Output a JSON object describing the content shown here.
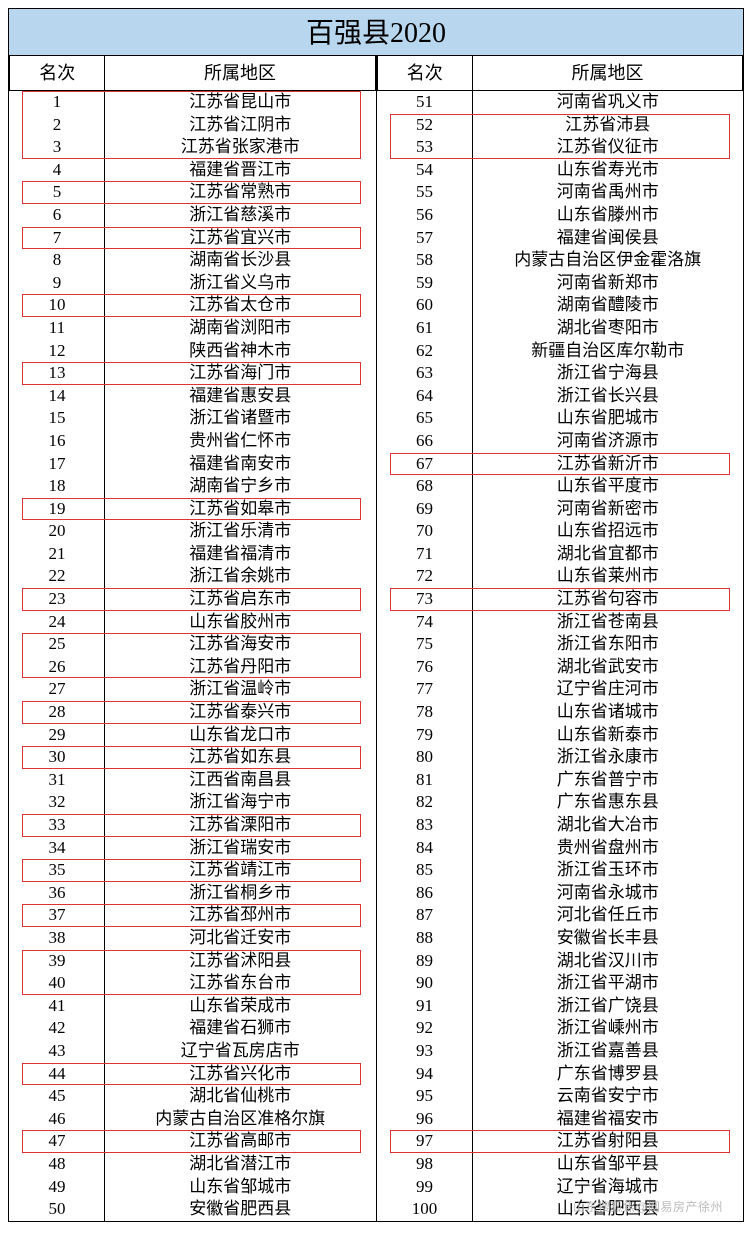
{
  "title": "百强县2020",
  "headers": {
    "rank": "名次",
    "region": "所属地区"
  },
  "watermark": "山东搜狐焦@网易房产徐州",
  "highlight_color": "#d33",
  "title_bg": "#b8d6ed",
  "left": [
    {
      "rank": 1,
      "region": "江苏省昆山市",
      "hl": true,
      "group": "a"
    },
    {
      "rank": 2,
      "region": "江苏省江阴市",
      "hl": true,
      "group": "a"
    },
    {
      "rank": 3,
      "region": "江苏省张家港市",
      "hl": true,
      "group": "a"
    },
    {
      "rank": 4,
      "region": "福建省晋江市"
    },
    {
      "rank": 5,
      "region": "江苏省常熟市",
      "hl": true,
      "group": "b"
    },
    {
      "rank": 6,
      "region": "浙江省慈溪市"
    },
    {
      "rank": 7,
      "region": "江苏省宜兴市",
      "hl": true,
      "group": "c"
    },
    {
      "rank": 8,
      "region": "湖南省长沙县"
    },
    {
      "rank": 9,
      "region": "浙江省义乌市"
    },
    {
      "rank": 10,
      "region": "江苏省太仓市",
      "hl": true,
      "group": "d"
    },
    {
      "rank": 11,
      "region": "湖南省浏阳市"
    },
    {
      "rank": 12,
      "region": "陕西省神木市"
    },
    {
      "rank": 13,
      "region": "江苏省海门市",
      "hl": true,
      "group": "e"
    },
    {
      "rank": 14,
      "region": "福建省惠安县"
    },
    {
      "rank": 15,
      "region": "浙江省诸暨市"
    },
    {
      "rank": 16,
      "region": "贵州省仁怀市"
    },
    {
      "rank": 17,
      "region": "福建省南安市"
    },
    {
      "rank": 18,
      "region": "湖南省宁乡市"
    },
    {
      "rank": 19,
      "region": "江苏省如皋市",
      "hl": true,
      "group": "f"
    },
    {
      "rank": 20,
      "region": "浙江省乐清市"
    },
    {
      "rank": 21,
      "region": "福建省福清市"
    },
    {
      "rank": 22,
      "region": "浙江省余姚市"
    },
    {
      "rank": 23,
      "region": "江苏省启东市",
      "hl": true,
      "group": "g"
    },
    {
      "rank": 24,
      "region": "山东省胶州市"
    },
    {
      "rank": 25,
      "region": "江苏省海安市",
      "hl": true,
      "group": "h"
    },
    {
      "rank": 26,
      "region": "江苏省丹阳市",
      "hl": true,
      "group": "h"
    },
    {
      "rank": 27,
      "region": "浙江省温岭市"
    },
    {
      "rank": 28,
      "region": "江苏省泰兴市",
      "hl": true,
      "group": "i"
    },
    {
      "rank": 29,
      "region": "山东省龙口市"
    },
    {
      "rank": 30,
      "region": "江苏省如东县",
      "hl": true,
      "group": "j"
    },
    {
      "rank": 31,
      "region": "江西省南昌县"
    },
    {
      "rank": 32,
      "region": "浙江省海宁市"
    },
    {
      "rank": 33,
      "region": "江苏省溧阳市",
      "hl": true,
      "group": "k"
    },
    {
      "rank": 34,
      "region": "浙江省瑞安市"
    },
    {
      "rank": 35,
      "region": "江苏省靖江市",
      "hl": true,
      "group": "l"
    },
    {
      "rank": 36,
      "region": "浙江省桐乡市"
    },
    {
      "rank": 37,
      "region": "江苏省邳州市",
      "hl": true,
      "group": "m"
    },
    {
      "rank": 38,
      "region": "河北省迁安市"
    },
    {
      "rank": 39,
      "region": "江苏省沭阳县",
      "hl": true,
      "group": "n"
    },
    {
      "rank": 40,
      "region": "江苏省东台市",
      "hl": true,
      "group": "n"
    },
    {
      "rank": 41,
      "region": "山东省荣成市"
    },
    {
      "rank": 42,
      "region": "福建省石狮市"
    },
    {
      "rank": 43,
      "region": "辽宁省瓦房店市"
    },
    {
      "rank": 44,
      "region": "江苏省兴化市",
      "hl": true,
      "group": "o"
    },
    {
      "rank": 45,
      "region": "湖北省仙桃市"
    },
    {
      "rank": 46,
      "region": "内蒙古自治区准格尔旗"
    },
    {
      "rank": 47,
      "region": "江苏省高邮市",
      "hl": true,
      "group": "p"
    },
    {
      "rank": 48,
      "region": "湖北省潜江市"
    },
    {
      "rank": 49,
      "region": "山东省邹城市"
    },
    {
      "rank": 50,
      "region": "安徽省肥西县"
    }
  ],
  "right": [
    {
      "rank": 51,
      "region": "河南省巩义市"
    },
    {
      "rank": 52,
      "region": "江苏省沛县",
      "hl": true,
      "group": "q"
    },
    {
      "rank": 53,
      "region": "江苏省仪征市",
      "hl": true,
      "group": "q"
    },
    {
      "rank": 54,
      "region": "山东省寿光市"
    },
    {
      "rank": 55,
      "region": "河南省禹州市"
    },
    {
      "rank": 56,
      "region": "山东省滕州市"
    },
    {
      "rank": 57,
      "region": "福建省闽侯县"
    },
    {
      "rank": 58,
      "region": "内蒙古自治区伊金霍洛旗"
    },
    {
      "rank": 59,
      "region": "河南省新郑市"
    },
    {
      "rank": 60,
      "region": "湖南省醴陵市"
    },
    {
      "rank": 61,
      "region": "湖北省枣阳市"
    },
    {
      "rank": 62,
      "region": "新疆自治区库尔勒市"
    },
    {
      "rank": 63,
      "region": "浙江省宁海县"
    },
    {
      "rank": 64,
      "region": "浙江省长兴县"
    },
    {
      "rank": 65,
      "region": "山东省肥城市"
    },
    {
      "rank": 66,
      "region": "河南省济源市"
    },
    {
      "rank": 67,
      "region": "江苏省新沂市",
      "hl": true,
      "group": "r"
    },
    {
      "rank": 68,
      "region": "山东省平度市"
    },
    {
      "rank": 69,
      "region": "河南省新密市"
    },
    {
      "rank": 70,
      "region": "山东省招远市"
    },
    {
      "rank": 71,
      "region": "湖北省宜都市"
    },
    {
      "rank": 72,
      "region": "山东省莱州市"
    },
    {
      "rank": 73,
      "region": "江苏省句容市",
      "hl": true,
      "group": "s"
    },
    {
      "rank": 74,
      "region": "浙江省苍南县"
    },
    {
      "rank": 75,
      "region": "浙江省东阳市"
    },
    {
      "rank": 76,
      "region": "湖北省武安市"
    },
    {
      "rank": 77,
      "region": "辽宁省庄河市"
    },
    {
      "rank": 78,
      "region": "山东省诸城市"
    },
    {
      "rank": 79,
      "region": "山东省新泰市"
    },
    {
      "rank": 80,
      "region": "浙江省永康市"
    },
    {
      "rank": 81,
      "region": "广东省普宁市"
    },
    {
      "rank": 82,
      "region": "广东省惠东县"
    },
    {
      "rank": 83,
      "region": "湖北省大冶市"
    },
    {
      "rank": 84,
      "region": "贵州省盘州市"
    },
    {
      "rank": 85,
      "region": "浙江省玉环市"
    },
    {
      "rank": 86,
      "region": "河南省永城市"
    },
    {
      "rank": 87,
      "region": "河北省任丘市"
    },
    {
      "rank": 88,
      "region": "安徽省长丰县"
    },
    {
      "rank": 89,
      "region": "湖北省汉川市"
    },
    {
      "rank": 90,
      "region": "浙江省平湖市"
    },
    {
      "rank": 91,
      "region": "浙江省广饶县"
    },
    {
      "rank": 92,
      "region": "浙江省嵊州市"
    },
    {
      "rank": 93,
      "region": "浙江省嘉善县"
    },
    {
      "rank": 94,
      "region": "广东省博罗县"
    },
    {
      "rank": 95,
      "region": "云南省安宁市"
    },
    {
      "rank": 96,
      "region": "福建省福安市"
    },
    {
      "rank": 97,
      "region": "江苏省射阳县",
      "hl": true,
      "group": "t"
    },
    {
      "rank": 98,
      "region": "山东省邹平县"
    },
    {
      "rank": 99,
      "region": "辽宁省海城市"
    },
    {
      "rank": 100,
      "region": "山东省肥西县"
    }
  ]
}
